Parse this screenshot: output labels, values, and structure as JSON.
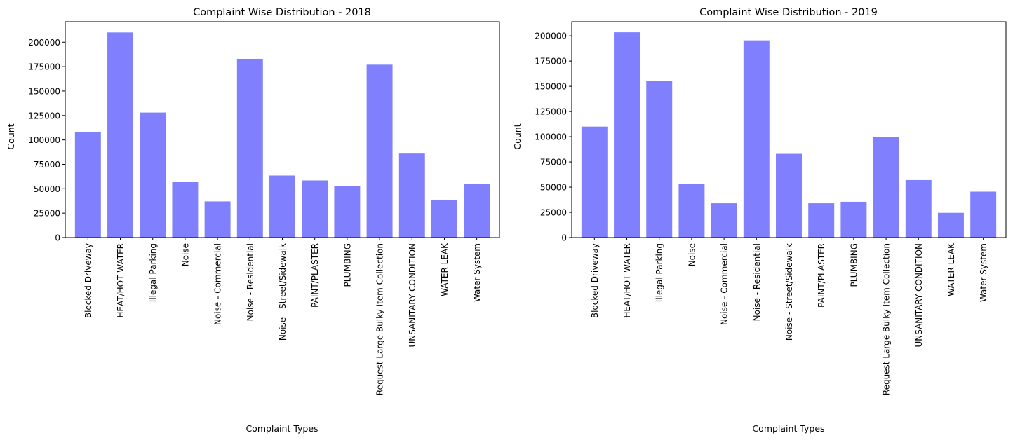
{
  "chart_data": [
    {
      "type": "bar",
      "title": "Complaint Wise Distribution - 2018",
      "xlabel": "Complaint Types",
      "ylabel": "Count",
      "ylim": [
        0,
        221000
      ],
      "yticks": [
        0,
        25000,
        50000,
        75000,
        100000,
        125000,
        150000,
        175000,
        200000
      ],
      "ytick_labels": [
        "0",
        "25000",
        "50000",
        "75000",
        "100000",
        "125000",
        "150000",
        "175000",
        "200000"
      ],
      "categories": [
        "Blocked Driveway",
        "HEAT/HOT WATER",
        "Illegal Parking",
        "Noise",
        "Noise - Commercial",
        "Noise - Residential",
        "Noise - Street/Sidewalk",
        "PAINT/PLASTER",
        "PLUMBING",
        "Request Large Bulky Item Collection",
        "UNSANITARY CONDITION",
        "WATER LEAK",
        "Water System"
      ],
      "values": [
        108000,
        210000,
        128000,
        57000,
        37000,
        183000,
        63500,
        58500,
        53000,
        177000,
        86000,
        38500,
        55000
      ],
      "bar_color": "#8080ff",
      "grid": false
    },
    {
      "type": "bar",
      "title": "Complaint Wise Distribution - 2019",
      "xlabel": "Complaint Types",
      "ylabel": "Count",
      "ylim": [
        0,
        214000
      ],
      "yticks": [
        0,
        25000,
        50000,
        75000,
        100000,
        125000,
        150000,
        175000,
        200000
      ],
      "ytick_labels": [
        "0",
        "25000",
        "50000",
        "75000",
        "100000",
        "125000",
        "150000",
        "175000",
        "200000"
      ],
      "categories": [
        "Blocked Driveway",
        "HEAT/HOT WATER",
        "Illegal Parking",
        "Noise",
        "Noise - Commercial",
        "Noise - Residential",
        "Noise - Street/Sidewalk",
        "PAINT/PLASTER",
        "PLUMBING",
        "Request Large Bulky Item Collection",
        "UNSANITARY CONDITION",
        "WATER LEAK",
        "Water System"
      ],
      "values": [
        110000,
        203500,
        155000,
        53000,
        34000,
        195500,
        83000,
        34000,
        35500,
        99500,
        57000,
        24500,
        45500
      ],
      "bar_color": "#8080ff",
      "grid": false
    }
  ]
}
